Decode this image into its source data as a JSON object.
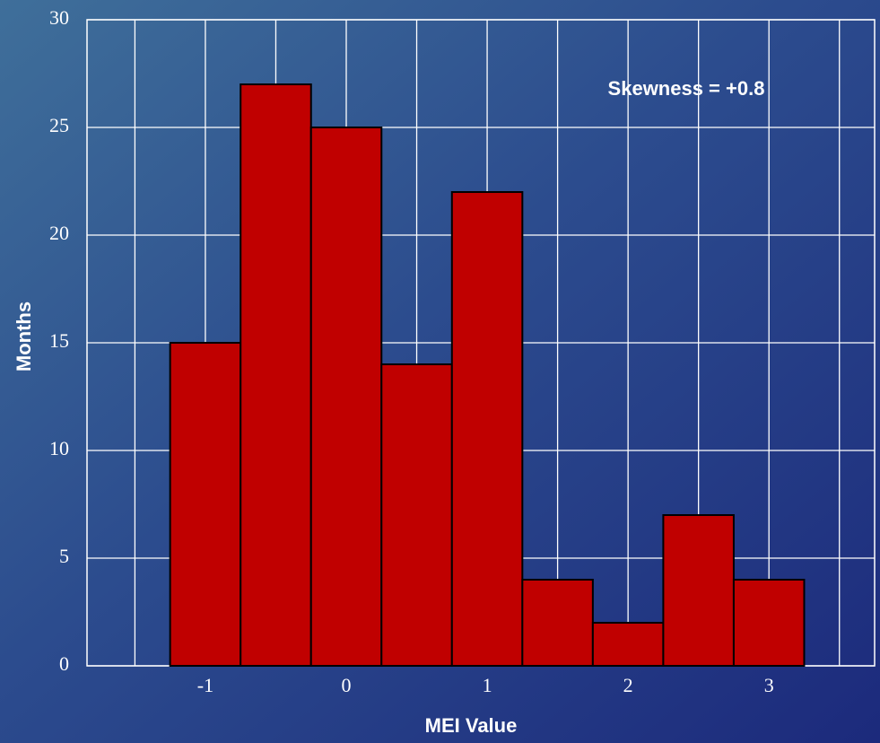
{
  "chart_data": {
    "type": "histogram",
    "xlabel": "MEI Value",
    "ylabel": "Months",
    "annotation": "Skewness = +0.8",
    "bins": [
      -1.25,
      -0.75,
      -0.25,
      0.25,
      0.75,
      1.25,
      1.75,
      2.25,
      2.75,
      3.25
    ],
    "values": [
      15,
      27,
      25,
      14,
      22,
      4,
      2,
      7,
      4
    ],
    "color": "#c00000",
    "xlim": [
      -1.84,
      3.75
    ],
    "xticks": [
      -1,
      0,
      1,
      2,
      3
    ],
    "x_minor_ticks": [
      -1.5,
      -0.5,
      0.5,
      1.5,
      2.5,
      3.5
    ],
    "ylim": [
      0,
      30
    ],
    "yticks": [
      0,
      5,
      10,
      15,
      20,
      25,
      30
    ],
    "grid": true
  }
}
